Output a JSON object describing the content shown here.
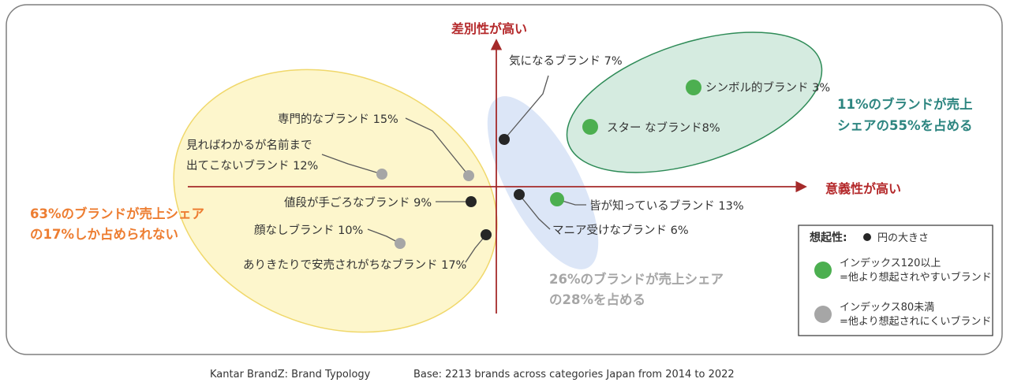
{
  "axes": {
    "y_label": "差別性が高い",
    "x_label": "意義性が高い"
  },
  "brands": [
    {
      "id": "kininaru",
      "label": "気になるブランド 7%",
      "category": "dark"
    },
    {
      "id": "symbol",
      "label": "シンボル的ブランド 3%",
      "category": "green"
    },
    {
      "id": "star",
      "label": "スター なブランド8%",
      "category": "green"
    },
    {
      "id": "senmon",
      "label": "専門的なブランド 15%",
      "category": "gray"
    },
    {
      "id": "mireba",
      "label_lines": [
        "見ればわかるが名前まで",
        "出てこないブランド 12%"
      ],
      "category": "gray"
    },
    {
      "id": "nedan",
      "label": "値段が手ごろなブランド 9%",
      "category": "dark"
    },
    {
      "id": "kaonashi",
      "label": "顔なしブランド 10%",
      "category": "gray"
    },
    {
      "id": "arikitari",
      "label": "ありきたりで安売されがちなブランド 17%",
      "category": "dark"
    },
    {
      "id": "minagashitte",
      "label": "皆が知っているブランド 13%",
      "category": "green"
    },
    {
      "id": "mania",
      "label": "マニア受けなブランド 6%",
      "category": "dark"
    }
  ],
  "callouts": {
    "green": [
      "11%のブランドが売上",
      "シェアの55%を占める"
    ],
    "orange": [
      "63%のブランドが売上シェア",
      "の17%しか占められない"
    ],
    "blue": [
      "26%のブランドが売上シェア",
      "の28%を占める"
    ]
  },
  "legend": {
    "title": "想起性:",
    "size_note": "円の大きさ",
    "items": [
      {
        "lines": [
          "インデックス120以上",
          "=他より想起されやすいブランド"
        ],
        "color": "#4caf50"
      },
      {
        "lines": [
          "インデックス80未満",
          "=他より想起されにくいブランド"
        ],
        "color": "#a6a6a6"
      }
    ]
  },
  "footer": {
    "source": "Kantar BrandZ: Brand Typology",
    "base": "Base: 2213 brands across categories Japan from 2014 to 2022"
  },
  "colors": {
    "axis": "#a52a2a",
    "dot_dark": "#262626",
    "dot_green": "#4caf50",
    "dot_gray": "#a6a6a6",
    "ellipse_yellow": "#fdf6cc",
    "ellipse_green": "#d5ebe0",
    "ellipse_blue": "#dce6f7",
    "callout_green": "#2d8580",
    "callout_orange": "#ed7d31",
    "callout_blue": "#a6a6a6"
  }
}
